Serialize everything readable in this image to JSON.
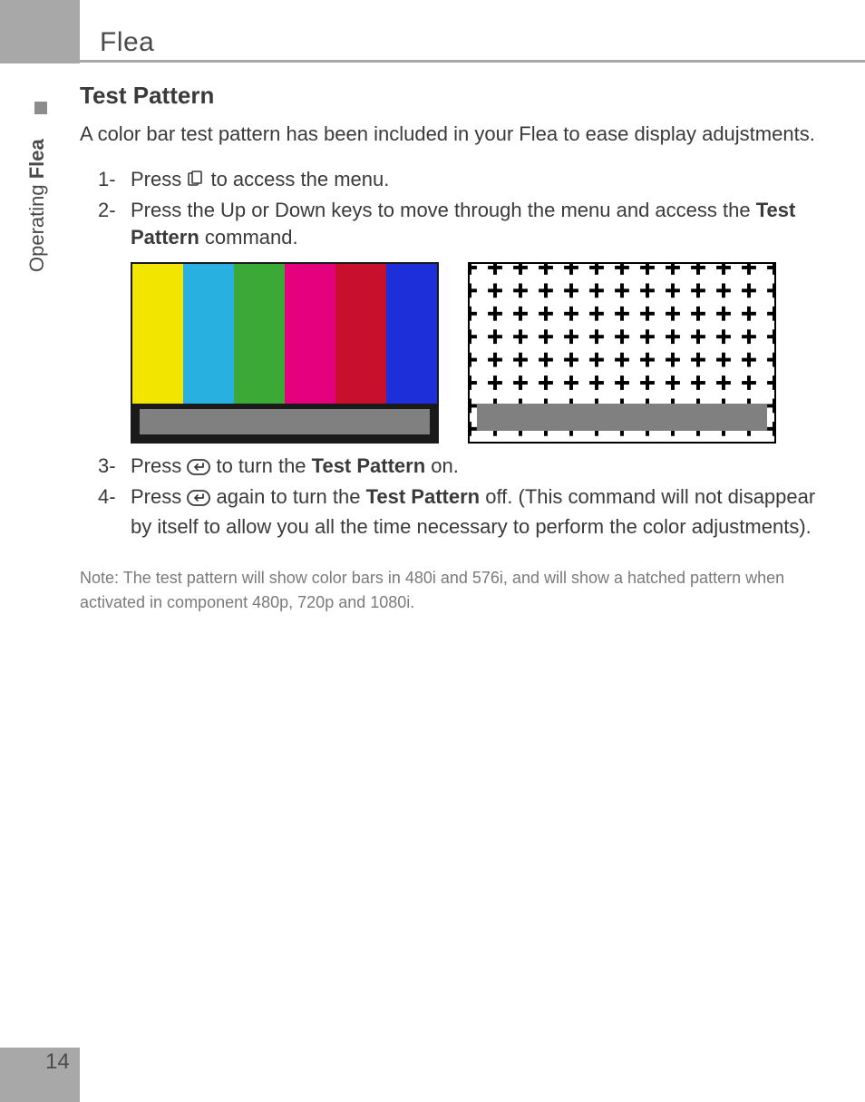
{
  "header": {
    "title": "Flea"
  },
  "sidebar": {
    "label_pre": "Operating ",
    "label_bold": "Flea"
  },
  "section": {
    "title": "Test Pattern",
    "intro": "A color bar test pattern has been included in your Flea to ease display adujstments.",
    "steps": [
      {
        "num": "1-",
        "pre": "Press ",
        "icon": "menu",
        "post": " to access the menu."
      },
      {
        "num": "2-",
        "pre": "Press the Up or Down keys to move through the menu and access the ",
        "bold": "Test Pattern",
        "post": " command."
      },
      {
        "num": "3-",
        "pre": "Press ",
        "icon": "enter",
        "mid": " to turn the ",
        "bold": "Test Pattern",
        "post": " on."
      },
      {
        "num": "4-",
        "pre": "Press ",
        "icon": "enter",
        "mid": " again to turn the ",
        "bold": "Test Pattern",
        "post": " off.  (This command will not disappear by itself to allow you all the time necessary to perform the color adjustments)."
      }
    ],
    "note": "Note:  The test pattern will show color bars in 480i and 576i, and will show a hatched pattern when activated in component 480p, 720p and 1080i."
  },
  "color_bars": {
    "colors": [
      "#f2e600",
      "#27b0e0",
      "#3aa935",
      "#e5007d",
      "#c80f2e",
      "#1d2fd8"
    ],
    "border_color": "#1a1a1a",
    "lower_band_color": "#808080"
  },
  "hatch": {
    "rows": 7,
    "cols": 12,
    "tick_color": "#000000",
    "lower_band_color": "#808080"
  },
  "page_number": "14",
  "colors": {
    "gray_bar": "#a8a8a8",
    "text": "#3a3a3a",
    "note_text": "#7a7a7a"
  }
}
